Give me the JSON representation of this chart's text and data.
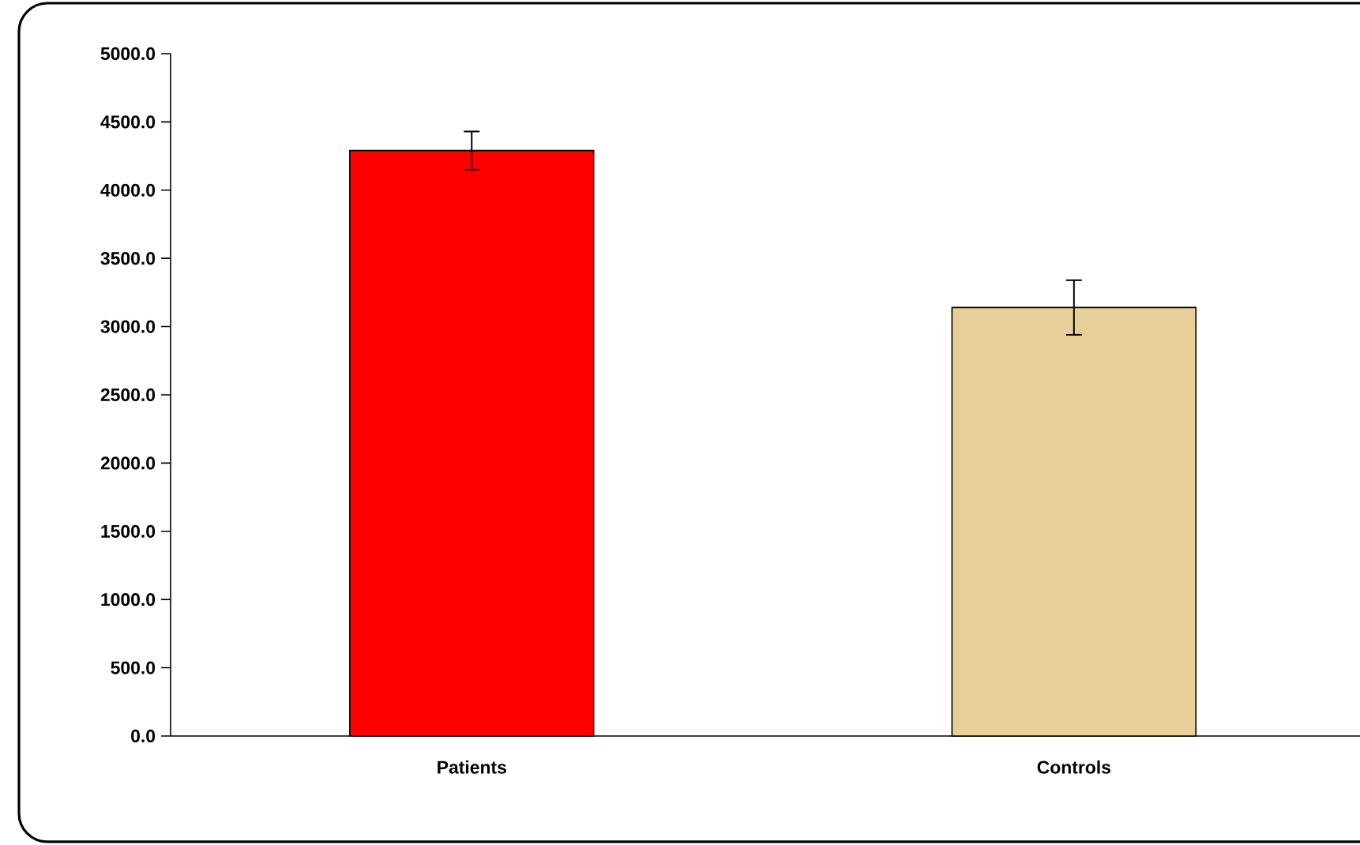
{
  "chart_data": {
    "type": "bar",
    "categories": [
      "Patients",
      "Controls"
    ],
    "values": [
      4290,
      3140
    ],
    "errors": [
      140,
      200
    ],
    "colors": [
      "#ff0000",
      "#e6cf98"
    ],
    "ylim": [
      0,
      5000
    ],
    "yticks": [
      {
        "value": 0,
        "label": "0.0"
      },
      {
        "value": 500,
        "label": "500.0"
      },
      {
        "value": 1000,
        "label": "1000.0"
      },
      {
        "value": 1500,
        "label": "1500.0"
      },
      {
        "value": 2000,
        "label": "2000.0"
      },
      {
        "value": 2500,
        "label": "2500.0"
      },
      {
        "value": 3000,
        "label": "3000.0"
      },
      {
        "value": 3500,
        "label": "3500.0"
      },
      {
        "value": 4000,
        "label": "4000.0"
      },
      {
        "value": 4500,
        "label": "4500.0"
      },
      {
        "value": 5000,
        "label": "5000.0"
      }
    ]
  }
}
